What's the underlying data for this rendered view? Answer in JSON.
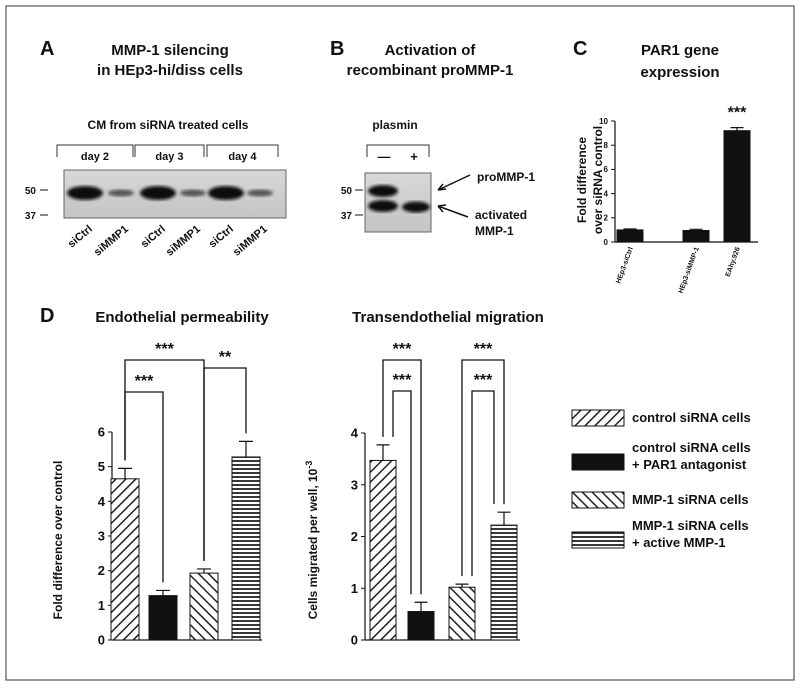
{
  "panel_labels": [
    "A",
    "B",
    "C",
    "D"
  ],
  "blot_a": {
    "title": [
      "MMP-1 silencing",
      "in HEp3-hi/diss cells"
    ],
    "subtitle": "CM from siRNA treated cells",
    "groups": [
      "day 2",
      "day 3",
      "day 4"
    ],
    "markers": [
      "50",
      "37"
    ],
    "lanes": [
      "siCtrl",
      "siMMP1",
      "siCtrl",
      "siMMP1",
      "siCtrl",
      "siMMP1"
    ]
  },
  "blot_b": {
    "title": [
      "Activation of",
      "recombinant proMMP-1"
    ],
    "subtitle": "plasmin",
    "lanes": [
      "—",
      "+"
    ],
    "markers": [
      "50",
      "37"
    ],
    "bands": [
      [
        "proMMP-1"
      ],
      [
        "activated",
        "MMP-1"
      ]
    ]
  },
  "legend": [
    {
      "lines": [
        "control siRNA cells"
      ],
      "pattern": "diag-up"
    },
    {
      "lines": [
        "control siRNA cells",
        "+ PAR1 antagonist"
      ],
      "pattern": "solid"
    },
    {
      "lines": [
        "MMP-1 siRNA cells"
      ],
      "pattern": "diag-down"
    },
    {
      "lines": [
        "MMP-1 siRNA cells",
        "+ active MMP-1"
      ],
      "pattern": "horizontal"
    }
  ],
  "chart_data": [
    {
      "type": "bar",
      "title": [
        "PAR1 gene",
        "expression"
      ],
      "y_label": [
        "Fold difference",
        "over siRNA control"
      ],
      "categories": [
        "HEp3-siCtrl",
        "HEp3-siMMP-1",
        "EAhy.926"
      ],
      "values": [
        1.0,
        0.95,
        9.2
      ],
      "errors": [
        0.08,
        0.1,
        0.25
      ],
      "patterns": [
        "solid",
        "solid",
        "solid"
      ],
      "ylim": [
        0,
        10
      ],
      "yticks": [
        0,
        2,
        4,
        6,
        8,
        10
      ],
      "annotations": [
        {
          "text": "***",
          "from": 2,
          "to": 2
        }
      ]
    },
    {
      "type": "bar",
      "title": "Endothelial permeability",
      "y_label": "Fold difference over control",
      "categories": [
        null,
        null,
        null,
        null
      ],
      "values": [
        4.65,
        1.28,
        1.93,
        5.28
      ],
      "errors": [
        0.3,
        0.15,
        0.12,
        0.45
      ],
      "patterns": [
        "diag-up",
        "solid",
        "diag-down",
        "horizontal"
      ],
      "ylim": [
        0,
        6
      ],
      "yticks": [
        0,
        1,
        2,
        3,
        4,
        5,
        6
      ],
      "annotations": [
        {
          "text": "***",
          "from": 0,
          "to": 2
        },
        {
          "text": "***",
          "from": 0,
          "to": 1
        },
        {
          "text": "**",
          "from": 2,
          "to": 3
        }
      ]
    },
    {
      "type": "bar",
      "title": "Transendothelial migration",
      "y_label": "Cells migrated  per well, 10",
      "y_label_exponent": "-3",
      "categories": [
        null,
        null,
        null,
        null
      ],
      "values": [
        3.47,
        0.55,
        1.02,
        2.22
      ],
      "errors": [
        0.3,
        0.18,
        0.06,
        0.25
      ],
      "patterns": [
        "diag-up",
        "solid",
        "diag-down",
        "horizontal"
      ],
      "ylim": [
        0,
        4
      ],
      "yticks": [
        0,
        1,
        2,
        3,
        4
      ],
      "annotations": [
        {
          "text": "***",
          "from": 0,
          "to": 1
        },
        {
          "text": "***",
          "from": 0,
          "to": 1
        },
        {
          "text": "***",
          "from": 2,
          "to": 3
        },
        {
          "text": "***",
          "from": 2,
          "to": 3
        }
      ]
    }
  ]
}
